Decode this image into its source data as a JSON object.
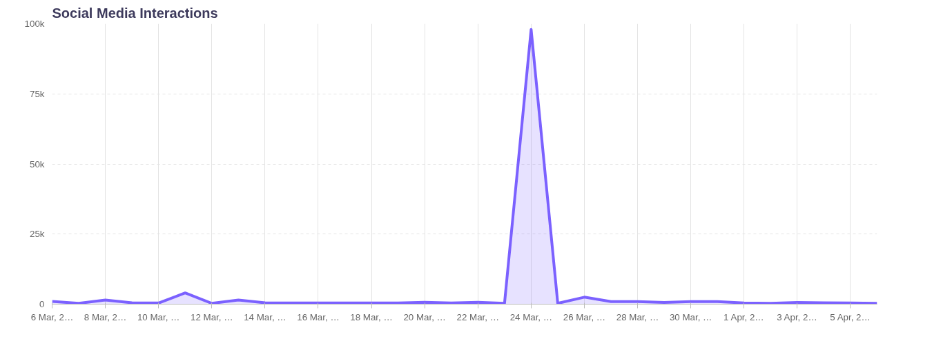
{
  "chart_data": {
    "type": "area",
    "title": "Social Media Interactions",
    "categories": [
      "6 Mar, 2…",
      null,
      "8 Mar, 2…",
      null,
      "10 Mar, …",
      null,
      "12 Mar, …",
      null,
      "14 Mar, …",
      null,
      "16 Mar, …",
      null,
      "18 Mar, …",
      null,
      "20 Mar, …",
      null,
      "22 Mar, …",
      null,
      "24 Mar, …",
      null,
      "26 Mar, …",
      null,
      "28 Mar, …",
      null,
      "30 Mar, …",
      null,
      "1 Apr, 2…",
      null,
      "3 Apr, 2…",
      null,
      "5 Apr, 2…",
      null
    ],
    "series": [
      {
        "color": "#7b61ff",
        "values": [
          1000,
          300,
          1500,
          500,
          400,
          4000,
          300,
          1500,
          500,
          400,
          400,
          400,
          400,
          400,
          700,
          400,
          700,
          300,
          98000,
          300,
          2500,
          900,
          900,
          600,
          900,
          900,
          400,
          300,
          600,
          500,
          400,
          300
        ]
      }
    ],
    "ylim": [
      0,
      100000
    ],
    "yticks": [
      0,
      {
        "value": 25000,
        "label": "25k"
      },
      {
        "value": 50000,
        "label": "50k"
      },
      {
        "value": 75000,
        "label": "75k"
      },
      {
        "value": 100000,
        "label": "100k"
      }
    ],
    "grid": true
  }
}
